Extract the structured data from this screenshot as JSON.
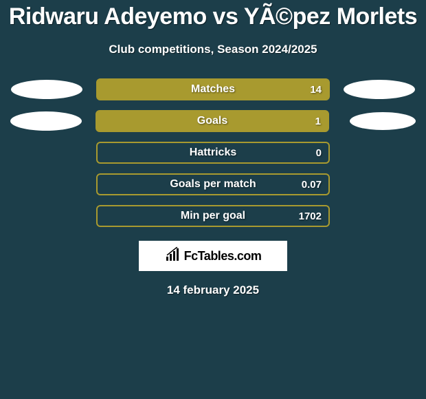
{
  "title": "Ridwaru Adeyemo vs YÃ©pez Morlets",
  "subtitle": "Club competitions, Season 2024/2025",
  "stats": [
    {
      "label": "Matches",
      "value": "14",
      "fill_pct": 100,
      "filled": true,
      "left_ellipse": true,
      "right_ellipse": true,
      "right_small": false
    },
    {
      "label": "Goals",
      "value": "1",
      "fill_pct": 100,
      "filled": true,
      "left_ellipse": true,
      "right_ellipse": true,
      "right_small": true
    },
    {
      "label": "Hattricks",
      "value": "0",
      "fill_pct": 0,
      "filled": false,
      "left_ellipse": false,
      "right_ellipse": false,
      "right_small": false
    },
    {
      "label": "Goals per match",
      "value": "0.07",
      "fill_pct": 0,
      "filled": false,
      "left_ellipse": false,
      "right_ellipse": false,
      "right_small": false
    },
    {
      "label": "Min per goal",
      "value": "1702",
      "fill_pct": 0,
      "filled": false,
      "left_ellipse": false,
      "right_ellipse": false,
      "right_small": false
    }
  ],
  "logo_text": "FcTables.com",
  "date_text": "14 february 2025",
  "colors": {
    "background": "#1c3e4a",
    "bar_border": "#a89a2f",
    "bar_fill": "#a89a2f",
    "ellipse": "#ffffff"
  }
}
